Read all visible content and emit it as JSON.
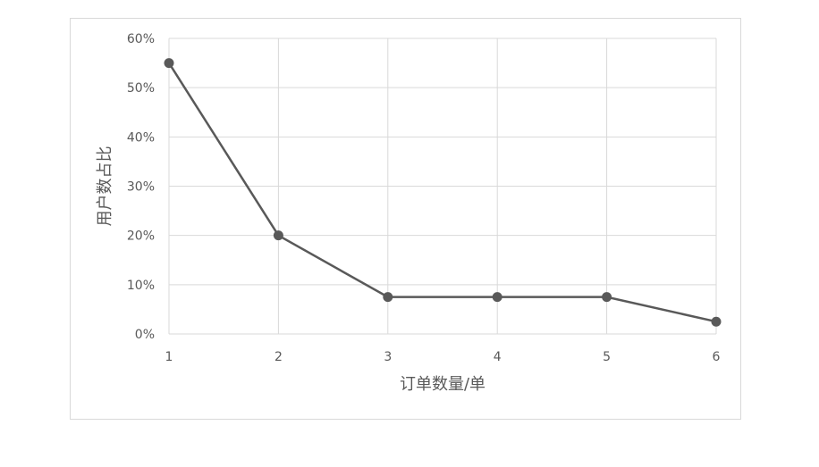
{
  "chart_data": {
    "type": "line",
    "title": "",
    "xlabel": "订单数量/单",
    "ylabel": "用户数占比",
    "x": [
      1,
      2,
      3,
      4,
      5,
      6
    ],
    "x_tick_labels": [
      "1",
      "2",
      "3",
      "4",
      "5",
      "6"
    ],
    "y_tick_labels": [
      "0%",
      "10%",
      "20%",
      "30%",
      "40%",
      "50%",
      "60%"
    ],
    "y_ticks": [
      0,
      10,
      20,
      30,
      40,
      50,
      60
    ],
    "ylim": [
      0,
      60
    ],
    "xlim": [
      1,
      6
    ],
    "grid": true,
    "series": [
      {
        "values": [
          55,
          20,
          7.5,
          7.5,
          7.5,
          2.5
        ],
        "color": "#595959",
        "marker": "circle"
      }
    ]
  }
}
